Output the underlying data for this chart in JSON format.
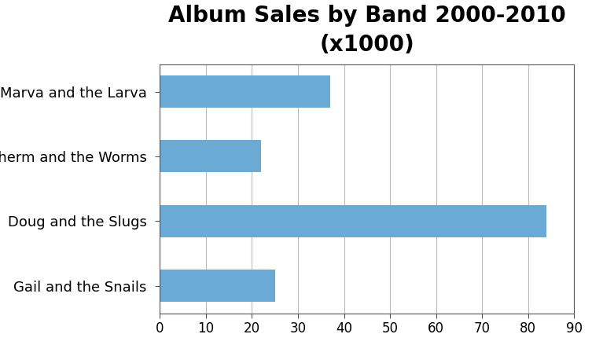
{
  "title": "Album Sales by Band 2000-2010\n(x1000)",
  "categories": [
    "Gail and the Snails",
    "Doug and the Slugs",
    "Sherm and the Worms",
    "Marva and the Larva"
  ],
  "values": [
    25,
    84,
    22,
    37
  ],
  "bar_color": "#6aaad4",
  "xlim": [
    0,
    90
  ],
  "xticks": [
    0,
    10,
    20,
    30,
    40,
    50,
    60,
    70,
    80,
    90
  ],
  "background_color": "#ffffff",
  "title_fontsize": 20,
  "tick_fontsize": 12,
  "label_fontsize": 13,
  "bar_height": 0.5
}
